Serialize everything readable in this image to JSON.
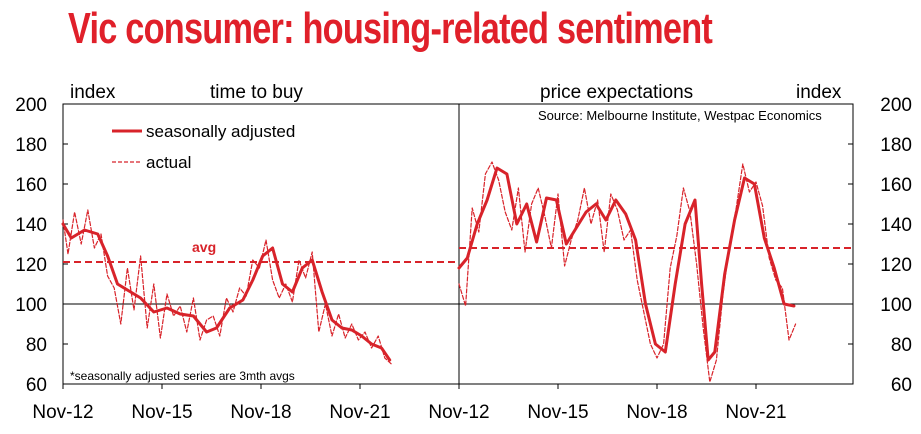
{
  "title": "Vic consumer: housing-related sentiment",
  "chart_data": [
    {
      "type": "line",
      "title": "time to buy",
      "ylabel": "index",
      "ylim": [
        60,
        200
      ],
      "y_ticks": [
        "60",
        "80",
        "100",
        "120",
        "140",
        "160",
        "180",
        "200"
      ],
      "x_ticks": [
        "Nov-12",
        "Nov-15",
        "Nov-18",
        "Nov-21"
      ],
      "legend": [
        "seasonally adjusted",
        "actual"
      ],
      "avg_label": "avg",
      "avg": 121,
      "note": "*seasonally adjusted series are 3mth avgs",
      "color": "#d8232a",
      "series": [
        {
          "name": "seasonally adjusted",
          "style": "solid",
          "x": [
            2012.85,
            2013.1,
            2013.5,
            2013.9,
            2014.2,
            2014.5,
            2014.9,
            2015.2,
            2015.6,
            2016.0,
            2016.4,
            2016.8,
            2017.2,
            2017.5,
            2017.9,
            2018.3,
            2018.6,
            2018.9,
            2019.2,
            2019.5,
            2019.8,
            2020.1,
            2020.4,
            2020.7,
            2021.0,
            2021.3,
            2021.6,
            2021.9,
            2022.2,
            2022.5,
            2022.75
          ],
          "values": [
            140,
            133,
            137,
            135,
            124,
            110,
            106,
            103,
            96,
            98,
            95,
            94,
            86,
            88,
            98,
            102,
            112,
            124,
            128,
            110,
            106,
            118,
            122,
            106,
            92,
            88,
            87,
            84,
            80,
            78,
            72
          ]
        },
        {
          "name": "actual",
          "style": "dashed",
          "x": [
            2012.85,
            2013.0,
            2013.2,
            2013.4,
            2013.6,
            2013.8,
            2014.0,
            2014.2,
            2014.4,
            2014.6,
            2014.8,
            2015.0,
            2015.2,
            2015.4,
            2015.6,
            2015.8,
            2016.0,
            2016.2,
            2016.4,
            2016.6,
            2016.8,
            2017.0,
            2017.2,
            2017.4,
            2017.6,
            2017.8,
            2018.0,
            2018.2,
            2018.4,
            2018.6,
            2018.8,
            2019.0,
            2019.2,
            2019.4,
            2019.6,
            2019.8,
            2020.0,
            2020.2,
            2020.4,
            2020.6,
            2020.8,
            2021.0,
            2021.2,
            2021.4,
            2021.6,
            2021.8,
            2022.0,
            2022.2,
            2022.4,
            2022.6,
            2022.8
          ],
          "values": [
            142,
            125,
            146,
            130,
            147,
            128,
            135,
            114,
            108,
            90,
            118,
            97,
            124,
            88,
            110,
            83,
            105,
            94,
            99,
            86,
            103,
            82,
            92,
            94,
            84,
            103,
            96,
            108,
            104,
            122,
            118,
            132,
            112,
            103,
            110,
            101,
            122,
            113,
            126,
            86,
            100,
            84,
            95,
            83,
            90,
            82,
            86,
            78,
            84,
            73,
            70
          ]
        }
      ]
    },
    {
      "type": "line",
      "title": "price expectations",
      "ylabel": "index",
      "ylim": [
        60,
        200
      ],
      "y_ticks": [
        "60",
        "80",
        "100",
        "120",
        "140",
        "160",
        "180",
        "200"
      ],
      "x_ticks": [
        "Nov-12",
        "Nov-15",
        "Nov-18",
        "Nov-21"
      ],
      "source": "Source: Melbourne Institute, Westpac Economics",
      "avg": 128,
      "color": "#d8232a",
      "series": [
        {
          "name": "seasonally adjusted",
          "style": "solid",
          "x": [
            2012.85,
            2013.1,
            2013.4,
            2013.7,
            2014.0,
            2014.3,
            2014.6,
            2014.9,
            2015.2,
            2015.5,
            2015.8,
            2016.1,
            2016.4,
            2016.7,
            2017.0,
            2017.3,
            2017.6,
            2017.9,
            2018.2,
            2018.5,
            2018.8,
            2019.1,
            2019.4,
            2019.7,
            2020.0,
            2020.2,
            2020.4,
            2020.6,
            2020.9,
            2021.2,
            2021.5,
            2021.8,
            2022.1,
            2022.4,
            2022.7,
            2023.0
          ],
          "values": [
            118,
            123,
            140,
            152,
            168,
            165,
            140,
            150,
            131,
            153,
            152,
            130,
            138,
            146,
            150,
            142,
            152,
            145,
            132,
            100,
            80,
            76,
            110,
            140,
            152,
            110,
            72,
            76,
            115,
            142,
            163,
            160,
            133,
            118,
            100,
            99
          ]
        },
        {
          "name": "actual",
          "style": "dashed",
          "x": [
            2012.85,
            2013.05,
            2013.25,
            2013.45,
            2013.65,
            2013.85,
            2014.05,
            2014.25,
            2014.45,
            2014.65,
            2014.85,
            2015.05,
            2015.25,
            2015.45,
            2015.65,
            2015.85,
            2016.05,
            2016.25,
            2016.45,
            2016.65,
            2016.85,
            2017.05,
            2017.25,
            2017.45,
            2017.65,
            2017.85,
            2018.05,
            2018.25,
            2018.45,
            2018.65,
            2018.85,
            2019.05,
            2019.25,
            2019.45,
            2019.65,
            2019.85,
            2020.05,
            2020.25,
            2020.45,
            2020.65,
            2020.85,
            2021.05,
            2021.25,
            2021.45,
            2021.65,
            2021.85,
            2022.05,
            2022.25,
            2022.45,
            2022.65,
            2022.85,
            2023.05
          ],
          "values": [
            110,
            99,
            148,
            136,
            165,
            171,
            162,
            146,
            137,
            158,
            126,
            150,
            158,
            144,
            128,
            155,
            119,
            132,
            142,
            158,
            140,
            152,
            126,
            155,
            147,
            132,
            137,
            112,
            96,
            80,
            73,
            80,
            118,
            134,
            158,
            146,
            120,
            88,
            61,
            72,
            105,
            130,
            148,
            170,
            156,
            161,
            149,
            123,
            112,
            108,
            82,
            90
          ]
        }
      ]
    }
  ]
}
